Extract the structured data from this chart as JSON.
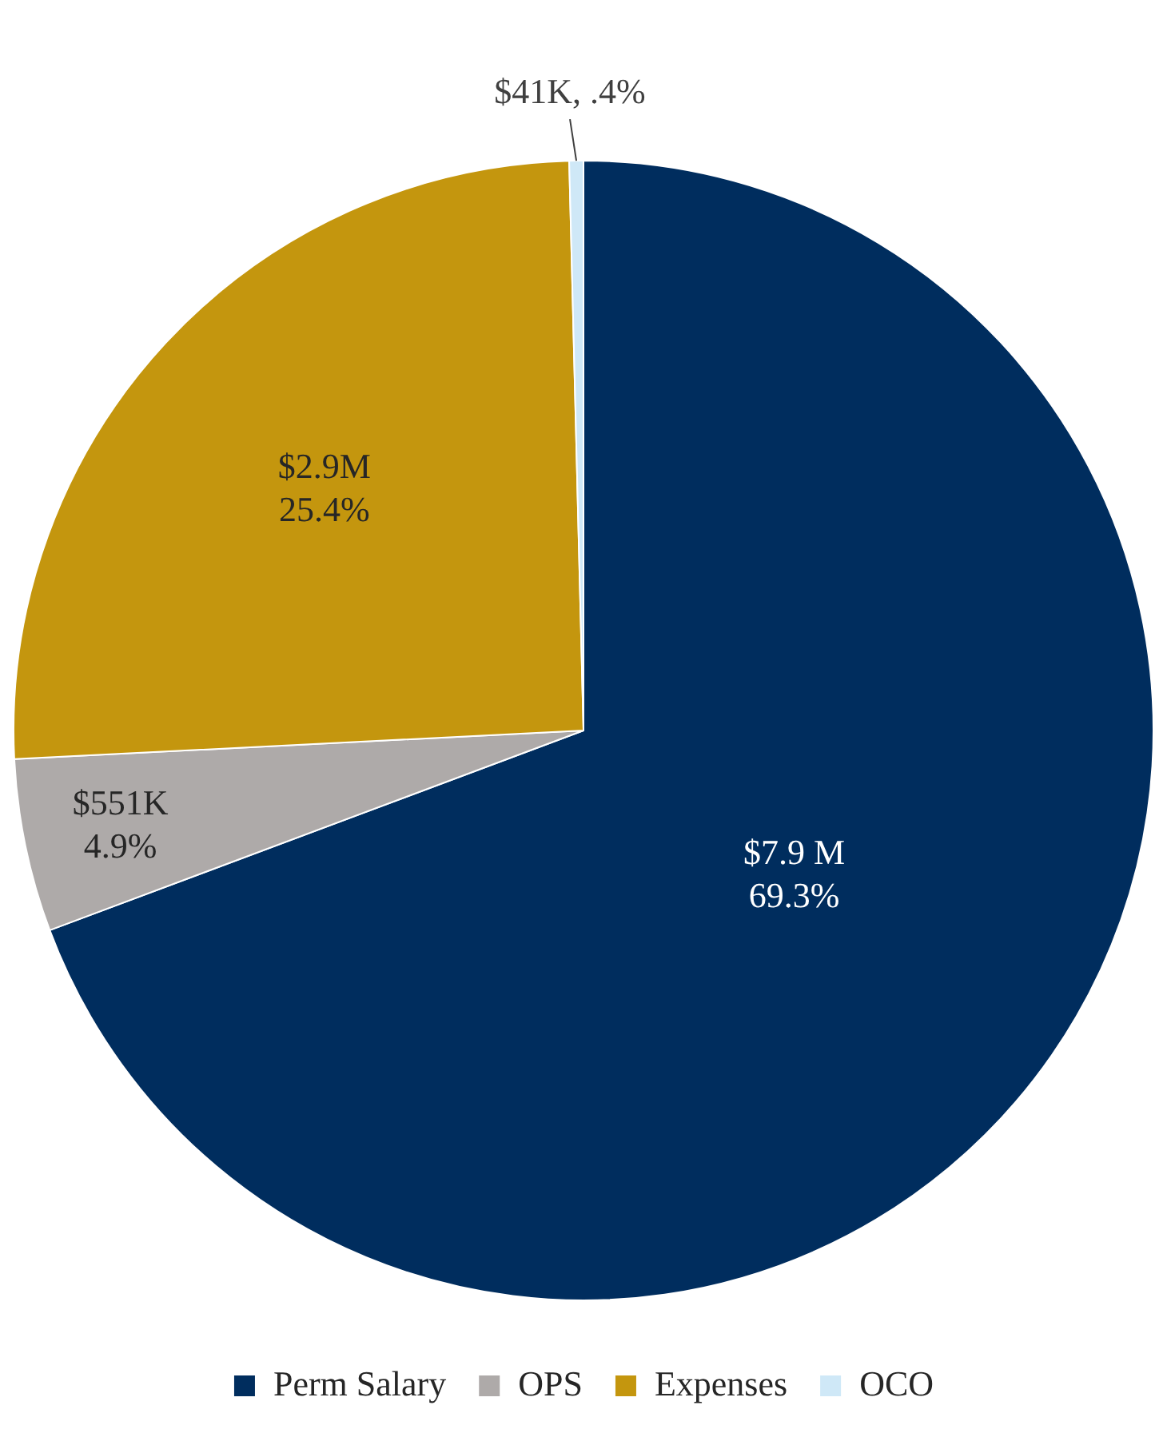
{
  "chart_data": {
    "type": "pie",
    "categories": [
      "Perm Salary",
      "OPS",
      "Expenses",
      "OCO"
    ],
    "values": [
      69.3,
      4.9,
      25.4,
      0.4
    ],
    "colors": [
      "#002d5e",
      "#aeaaa9",
      "#c4960e",
      "#cfe8f7"
    ],
    "value_labels": [
      "$7.9 M\n69.3%",
      "$551K\n4.9%",
      "$2.9M\n25.4%",
      "$41K, .4%"
    ],
    "legend": "bottom"
  }
}
